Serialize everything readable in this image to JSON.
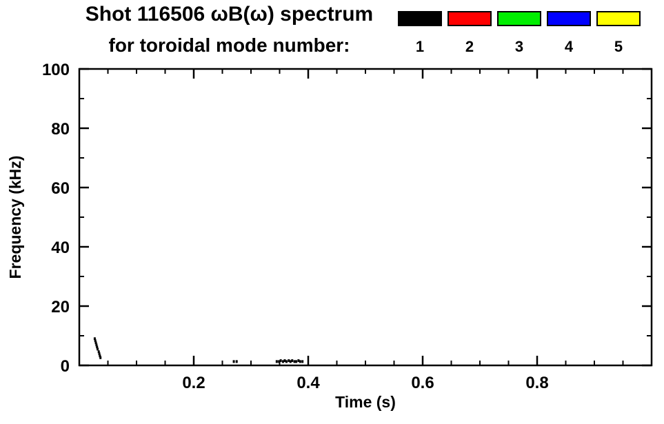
{
  "header": {
    "title_line1": "Shot 116506 ωB(ω) spectrum",
    "title_line2": "for toroidal mode number:"
  },
  "legend": {
    "entries": [
      {
        "label": "1",
        "color": "#000000"
      },
      {
        "label": "2",
        "color": "#ff0000"
      },
      {
        "label": "3",
        "color": "#00ee00"
      },
      {
        "label": "4",
        "color": "#0000ff"
      },
      {
        "label": "5",
        "color": "#ffff00"
      }
    ]
  },
  "chart_data": {
    "type": "scatter",
    "title": "Shot 116506 ωB(ω) spectrum",
    "subtitle": "for toroidal mode number:",
    "xlabel": "Time (s)",
    "ylabel": "Frequency (kHz)",
    "xlim": [
      0,
      1.0
    ],
    "ylim": [
      0,
      100
    ],
    "x_ticks": [
      0.2,
      0.4,
      0.6,
      0.8
    ],
    "x_tick_labels": [
      "0.2",
      "0.4",
      "0.6",
      "0.8"
    ],
    "x_minor_step": 0.05,
    "y_ticks": [
      0,
      20,
      40,
      60,
      80,
      100
    ],
    "y_tick_labels": [
      "0",
      "20",
      "40",
      "60",
      "80",
      "100"
    ],
    "y_minor_step": 10,
    "grid": false,
    "legend_position": "top-right",
    "series": [
      {
        "name": "n=1",
        "color": "#000000",
        "points": [
          [
            0.027,
            9.0
          ],
          [
            0.028,
            8.3
          ],
          [
            0.029,
            7.6
          ],
          [
            0.03,
            6.9
          ],
          [
            0.031,
            6.2
          ],
          [
            0.032,
            5.5
          ],
          [
            0.034,
            4.6
          ],
          [
            0.035,
            3.9
          ],
          [
            0.036,
            3.2
          ],
          [
            0.037,
            2.6
          ],
          [
            0.27,
            1.3
          ],
          [
            0.275,
            1.3
          ],
          [
            0.345,
            1.3
          ],
          [
            0.349,
            1.3
          ],
          [
            0.352,
            1.6
          ],
          [
            0.356,
            1.3
          ],
          [
            0.359,
            1.6
          ],
          [
            0.362,
            1.3
          ],
          [
            0.366,
            1.6
          ],
          [
            0.369,
            1.3
          ],
          [
            0.372,
            1.6
          ],
          [
            0.376,
            1.3
          ],
          [
            0.379,
            1.3
          ],
          [
            0.383,
            1.6
          ],
          [
            0.386,
            1.3
          ],
          [
            0.39,
            1.3
          ]
        ]
      },
      {
        "name": "n=2",
        "color": "#ff0000",
        "points": []
      },
      {
        "name": "n=3",
        "color": "#00ee00",
        "points": []
      },
      {
        "name": "n=4",
        "color": "#0000ff",
        "points": []
      },
      {
        "name": "n=5",
        "color": "#ffff00",
        "points": []
      }
    ]
  }
}
